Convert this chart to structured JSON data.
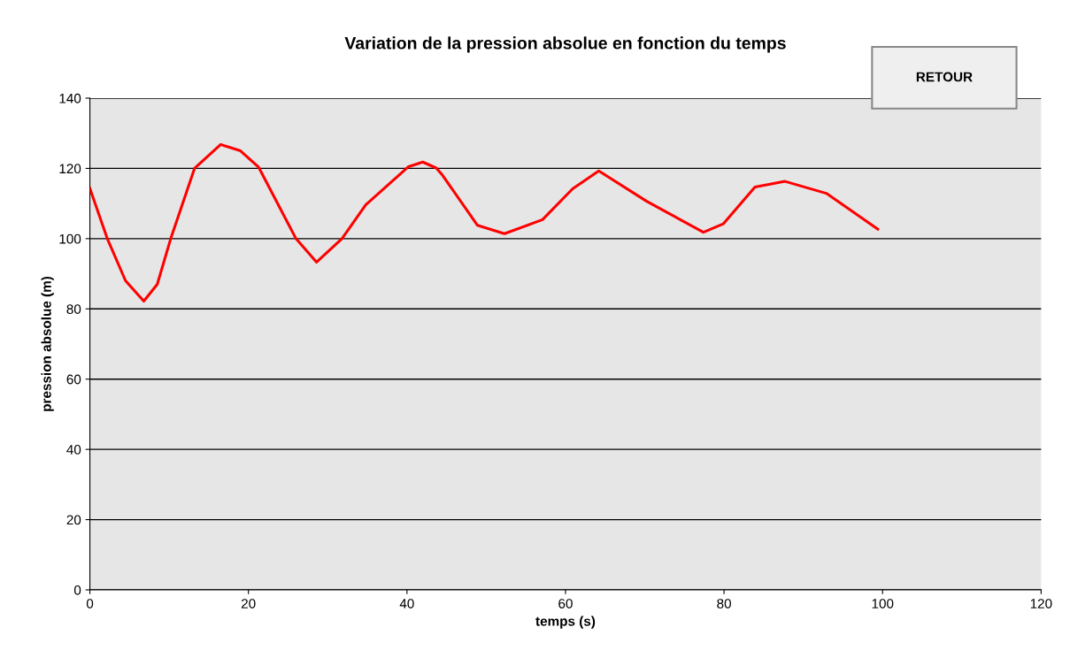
{
  "chart_data": {
    "type": "line",
    "title": "Variation de la pression absolue en fonction du temps",
    "xlabel": "temps (s)",
    "ylabel": "pression absolue (m)",
    "annotations": [
      "RETOUR"
    ],
    "series": [
      {
        "color": "#ff0000",
        "x": [
          0,
          2.2,
          4.5,
          6.8,
          8.5,
          10.2,
          13.2,
          16.5,
          19,
          21.3,
          26,
          28.6,
          31.8,
          34.8,
          40.2,
          42,
          43.7,
          44.5,
          48.9,
          52.3,
          57.1,
          60.9,
          64.2,
          70.2,
          72.8,
          77.4,
          79.9,
          83.9,
          87.7,
          92.9,
          99.4
        ],
        "values": [
          114.3,
          100,
          88,
          82.2,
          87,
          100,
          120,
          126.8,
          125,
          120.3,
          100,
          93.3,
          100,
          109.6,
          120.5,
          121.8,
          120.1,
          118,
          103.8,
          101.4,
          105.4,
          114.2,
          119.3,
          110.7,
          107.5,
          101.8,
          104.2,
          114.7,
          116.3,
          112.9,
          102.7
        ]
      }
    ],
    "xlim": [
      0,
      120
    ],
    "xticks": [
      0,
      20,
      40,
      60,
      80,
      100,
      120
    ],
    "ylim": [
      0,
      140
    ],
    "yticks": [
      0,
      20,
      40,
      60,
      80,
      100,
      120,
      140
    ],
    "grid": "y",
    "legend": false,
    "marker": "none",
    "line_style": "solid"
  }
}
